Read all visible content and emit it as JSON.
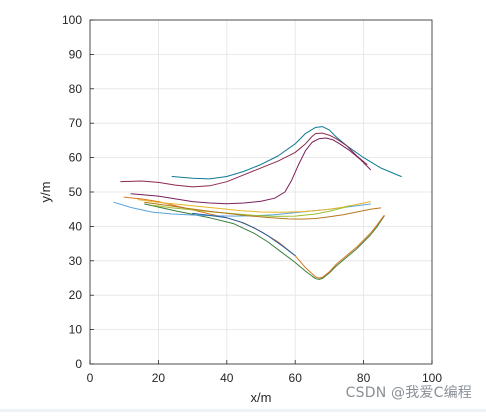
{
  "chart_data": {
    "type": "line",
    "title": "",
    "xlabel": "x/m",
    "ylabel": "y/m",
    "xlim": [
      0,
      100
    ],
    "ylim": [
      0,
      100
    ],
    "xticks": [
      0,
      20,
      40,
      60,
      80,
      100
    ],
    "yticks": [
      0,
      10,
      20,
      30,
      40,
      50,
      60,
      70,
      80,
      90,
      100
    ],
    "grid": true,
    "legend": "none",
    "series": [
      {
        "color": "#0e7a95",
        "x": [
          24,
          30,
          35,
          40,
          45,
          50,
          55,
          60,
          63,
          66,
          68,
          70,
          72,
          75,
          80,
          85,
          91
        ],
        "y": [
          54.5,
          54,
          53.8,
          54.5,
          56,
          58,
          60.5,
          64,
          67,
          68.8,
          69,
          68,
          66,
          63.5,
          60,
          57,
          54.5
        ]
      },
      {
        "color": "#8c2a4f",
        "x": [
          9,
          15,
          20,
          25,
          30,
          35,
          40,
          45,
          50,
          55,
          60,
          63,
          65,
          66,
          68,
          70,
          72,
          75,
          78,
          81
        ],
        "y": [
          53,
          53.2,
          52.8,
          52,
          51.5,
          51.8,
          53,
          55,
          57,
          59,
          61.5,
          64,
          66.2,
          67,
          67.1,
          66.5,
          65.5,
          63.5,
          60.5,
          58
        ]
      },
      {
        "color": "#7a1f5c",
        "x": [
          12,
          20,
          25,
          30,
          35,
          40,
          45,
          50,
          54,
          57,
          59,
          61,
          63,
          65,
          67,
          69,
          71,
          73,
          76,
          79,
          82
        ],
        "y": [
          49.5,
          48.8,
          48,
          47.2,
          46.8,
          46.6,
          46.8,
          47.3,
          48.2,
          50,
          53.5,
          58,
          62,
          64.5,
          65.5,
          65.7,
          65.2,
          64,
          62,
          59.5,
          56.5
        ]
      },
      {
        "color": "#3a7d3a",
        "x": [
          16,
          25,
          35,
          42,
          48,
          52,
          56,
          60,
          63,
          65,
          66,
          67,
          68,
          70,
          72,
          75,
          78,
          80,
          82,
          84,
          86
        ],
        "y": [
          46.5,
          44.5,
          42.5,
          40.8,
          38,
          35.5,
          32.5,
          29.5,
          27,
          25.5,
          24.8,
          24.6,
          24.9,
          26.5,
          28.5,
          31,
          33.5,
          35.5,
          37.5,
          40,
          43
        ]
      },
      {
        "color": "#d97719",
        "x": [
          10,
          15,
          20,
          25,
          30,
          35,
          40,
          45,
          50,
          55,
          60,
          63,
          65,
          66,
          67,
          68,
          70,
          72,
          75,
          78,
          80,
          82,
          84,
          86
        ],
        "y": [
          48.5,
          48,
          47.2,
          46,
          44.8,
          43.6,
          42.5,
          41,
          38.5,
          35.5,
          31.5,
          28,
          26.2,
          25.3,
          25,
          25.2,
          26.8,
          29,
          31.5,
          34,
          36,
          38,
          40.5,
          43.2
        ]
      },
      {
        "color": "#5aa2d9",
        "x": [
          7,
          12,
          18,
          24,
          30,
          36,
          42,
          48,
          54,
          60,
          65,
          70,
          74,
          78,
          82
        ],
        "y": [
          47,
          45.5,
          44.2,
          43.6,
          43.3,
          43.1,
          43,
          43.1,
          43.4,
          44,
          44.5,
          45,
          45.5,
          46,
          46.5
        ]
      },
      {
        "color": "#e8b62a",
        "x": [
          14,
          20,
          26,
          32,
          38,
          44,
          50,
          56,
          62,
          66,
          70,
          74,
          78,
          82
        ],
        "y": [
          47.8,
          47,
          46.4,
          45.8,
          45.2,
          44.6,
          44.2,
          44.1,
          44.3,
          44.6,
          45,
          45.6,
          46.4,
          47.2
        ]
      },
      {
        "color": "#9bbf2f",
        "x": [
          18,
          24,
          30,
          36,
          42,
          48,
          54,
          60,
          66,
          70,
          74,
          76
        ],
        "y": [
          46.2,
          45.4,
          44.8,
          44.2,
          43.7,
          43.2,
          42.9,
          43,
          43.6,
          44.4,
          45.4,
          46
        ]
      },
      {
        "color": "#b5781f",
        "x": [
          16,
          22,
          28,
          34,
          40,
          46,
          52,
          58,
          62,
          66,
          70,
          74,
          78,
          82,
          85
        ],
        "y": [
          47,
          46.2,
          45.3,
          44.5,
          43.8,
          43.1,
          42.6,
          42.2,
          42.1,
          42.3,
          42.8,
          43.4,
          44.2,
          45,
          45.4
        ]
      },
      {
        "color": "#1f5fa8",
        "x": [
          30,
          35,
          40,
          44,
          48,
          52,
          56,
          60
        ],
        "y": [
          43.8,
          43.2,
          42.5,
          41.3,
          39.6,
          37.3,
          34.5,
          31.5
        ]
      }
    ]
  },
  "watermark": "CSDN @我爱C编程"
}
